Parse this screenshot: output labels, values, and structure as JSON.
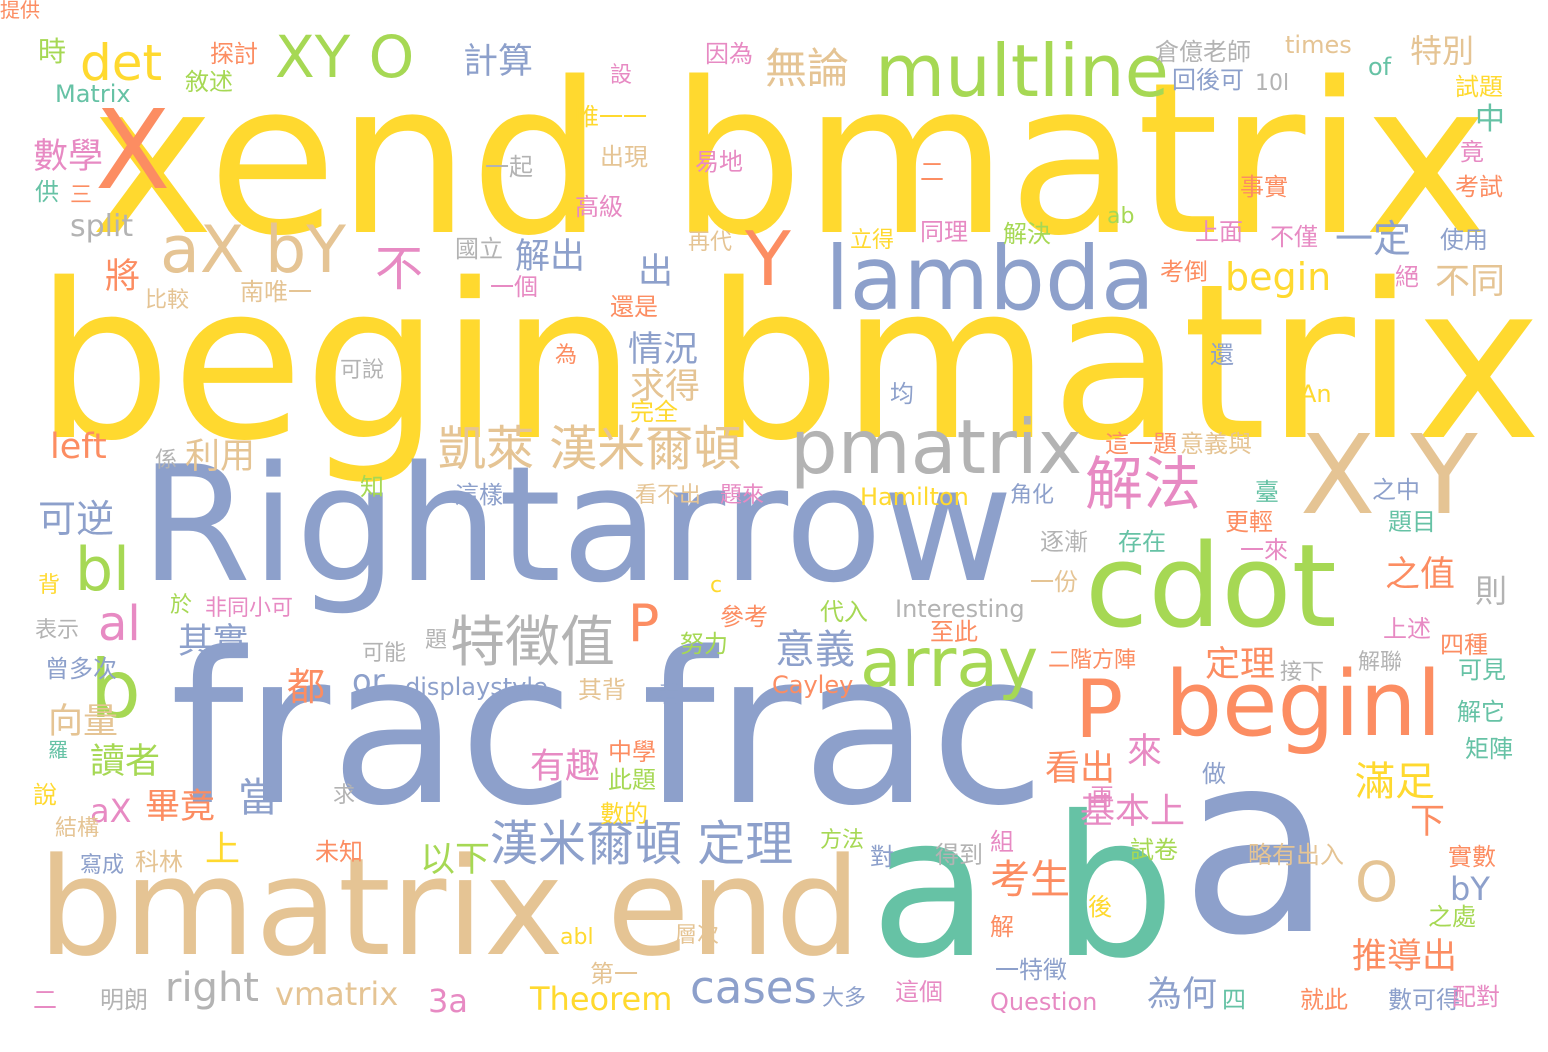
{
  "colors": {
    "background": "#ffffff",
    "yellow": "#FFD92F",
    "blue": "#8DA0CB",
    "tan": "#E5C494",
    "green": "#A6D854",
    "orange": "#FC8D62",
    "teal": "#66C2A5",
    "pink": "#E78AC3",
    "gray": "#B3B3B3"
  },
  "words": [
    {
      "text": "xend bmatrix",
      "color": "yellow"
    },
    {
      "text": "begin bmatrix",
      "color": "yellow"
    },
    {
      "text": "Rightarrow",
      "color": "blue"
    },
    {
      "text": "frac frac",
      "color": "blue"
    },
    {
      "text": "bmatrix end",
      "color": "tan"
    },
    {
      "text": "a b",
      "color": "teal"
    },
    {
      "text": "a",
      "color": "blue"
    },
    {
      "text": "X",
      "color": "orange"
    },
    {
      "text": "XY O",
      "color": "green"
    },
    {
      "text": "multline",
      "color": "green"
    },
    {
      "text": "lambda",
      "color": "blue"
    },
    {
      "text": "aX bY",
      "color": "tan"
    },
    {
      "text": "Y",
      "color": "orange"
    },
    {
      "text": "pmatrix",
      "color": "gray"
    },
    {
      "text": "X Y",
      "color": "tan"
    },
    {
      "text": "cdot",
      "color": "green"
    },
    {
      "text": "beginl",
      "color": "orange"
    },
    {
      "text": "P",
      "color": "orange"
    },
    {
      "text": "array",
      "color": "green"
    },
    {
      "text": "b",
      "color": "green"
    },
    {
      "text": "bl",
      "color": "green"
    },
    {
      "text": "al",
      "color": "pink"
    },
    {
      "text": "det",
      "color": "yellow"
    },
    {
      "text": "解法",
      "color": "pink"
    },
    {
      "text": "特徵值",
      "color": "gray"
    },
    {
      "text": "P",
      "color": "orange"
    },
    {
      "text": "凱萊 漢米爾頓",
      "color": "tan"
    },
    {
      "text": "漢米爾頓 定理",
      "color": "blue"
    },
    {
      "text": "無論",
      "color": "tan"
    },
    {
      "text": "begin",
      "color": "yellow"
    },
    {
      "text": "不",
      "color": "pink"
    },
    {
      "text": "一定",
      "color": "blue"
    },
    {
      "text": "O",
      "color": "tan"
    },
    {
      "text": "cases",
      "color": "blue"
    },
    {
      "text": "意義",
      "color": "blue"
    },
    {
      "text": "可逆",
      "color": "blue"
    },
    {
      "text": "split",
      "color": "gray"
    },
    {
      "text": "right",
      "color": "gray"
    },
    {
      "text": "vmatrix",
      "color": "tan"
    },
    {
      "text": "Theorem",
      "color": "yellow"
    },
    {
      "text": "3a",
      "color": "pink"
    },
    {
      "text": "left",
      "color": "orange"
    },
    {
      "text": "or",
      "color": "blue"
    },
    {
      "text": "displaystyle",
      "color": "blue"
    },
    {
      "text": "Hamilton",
      "color": "yellow"
    },
    {
      "text": "Interesting",
      "color": "gray"
    },
    {
      "text": "Cayley",
      "color": "orange"
    },
    {
      "text": "Question",
      "color": "pink"
    },
    {
      "text": "times",
      "color": "tan"
    },
    {
      "text": "Matrix",
      "color": "teal"
    },
    {
      "text": "of",
      "color": "teal"
    },
    {
      "text": "An",
      "color": "yellow"
    },
    {
      "text": "ab",
      "color": "green"
    },
    {
      "text": "abl",
      "color": "yellow"
    },
    {
      "text": "bY",
      "color": "blue"
    },
    {
      "text": "aX",
      "color": "pink"
    },
    {
      "text": "10l",
      "color": "gray"
    },
    {
      "text": "c",
      "color": "yellow"
    },
    {
      "text": "時",
      "color": "green"
    },
    {
      "text": "探討",
      "color": "orange"
    },
    {
      "text": "敘述",
      "color": "green"
    },
    {
      "text": "計算",
      "color": "blue"
    },
    {
      "text": "因為",
      "color": "pink"
    },
    {
      "text": "倉億老師",
      "color": "gray"
    },
    {
      "text": "特別",
      "color": "tan"
    },
    {
      "text": "回後可",
      "color": "blue"
    },
    {
      "text": "試題",
      "color": "yellow"
    },
    {
      "text": "數學",
      "color": "pink"
    },
    {
      "text": "供",
      "color": "teal"
    },
    {
      "text": "三",
      "color": "orange"
    },
    {
      "text": "設",
      "color": "pink"
    },
    {
      "text": "唯一一",
      "color": "yellow"
    },
    {
      "text": "出現",
      "color": "tan"
    },
    {
      "text": "一起",
      "color": "gray"
    },
    {
      "text": "易地",
      "color": "pink"
    },
    {
      "text": "高級",
      "color": "pink"
    },
    {
      "text": "二",
      "color": "orange"
    },
    {
      "text": "中",
      "color": "teal"
    },
    {
      "text": "竟",
      "color": "pink"
    },
    {
      "text": "考試",
      "color": "orange"
    },
    {
      "text": "事實",
      "color": "orange"
    },
    {
      "text": "立得",
      "color": "yellow"
    },
    {
      "text": "同理",
      "color": "pink"
    },
    {
      "text": "解決",
      "color": "green"
    },
    {
      "text": "上面",
      "color": "pink"
    },
    {
      "text": "不僅",
      "color": "pink"
    },
    {
      "text": "使用",
      "color": "blue"
    },
    {
      "text": "國立",
      "color": "gray"
    },
    {
      "text": "解出",
      "color": "blue"
    },
    {
      "text": "再代",
      "color": "tan"
    },
    {
      "text": "出",
      "color": "blue"
    },
    {
      "text": "將",
      "color": "orange"
    },
    {
      "text": "比較",
      "color": "tan"
    },
    {
      "text": "南唯一",
      "color": "tan"
    },
    {
      "text": "一個",
      "color": "pink"
    },
    {
      "text": "還是",
      "color": "orange"
    },
    {
      "text": "考倒",
      "color": "orange"
    },
    {
      "text": "絕",
      "color": "pink"
    },
    {
      "text": "不同",
      "color": "tan"
    },
    {
      "text": "為",
      "color": "orange"
    },
    {
      "text": "情況",
      "color": "blue"
    },
    {
      "text": "求得",
      "color": "tan"
    },
    {
      "text": "完全",
      "color": "yellow"
    },
    {
      "text": "可說",
      "color": "gray"
    },
    {
      "text": "還",
      "color": "blue"
    },
    {
      "text": "均",
      "color": "blue"
    },
    {
      "text": "利用",
      "color": "tan"
    },
    {
      "text": "係",
      "color": "gray"
    },
    {
      "text": "這一題",
      "color": "orange"
    },
    {
      "text": "意義與",
      "color": "tan"
    },
    {
      "text": "知",
      "color": "green"
    },
    {
      "text": "這樣",
      "color": "blue"
    },
    {
      "text": "看不出",
      "color": "tan"
    },
    {
      "text": "題來",
      "color": "pink"
    },
    {
      "text": "角化",
      "color": "blue"
    },
    {
      "text": "臺",
      "color": "teal"
    },
    {
      "text": "之中",
      "color": "blue"
    },
    {
      "text": "更輕",
      "color": "orange"
    },
    {
      "text": "題目",
      "color": "teal"
    },
    {
      "text": "逐漸",
      "color": "gray"
    },
    {
      "text": "存在",
      "color": "teal"
    },
    {
      "text": "一來",
      "color": "pink"
    },
    {
      "text": "之值",
      "color": "orange"
    },
    {
      "text": "則",
      "color": "gray"
    },
    {
      "text": "背",
      "color": "yellow"
    },
    {
      "text": "於",
      "color": "green"
    },
    {
      "text": "非同小可",
      "color": "pink"
    },
    {
      "text": "一份",
      "color": "tan"
    },
    {
      "text": "參考",
      "color": "orange"
    },
    {
      "text": "代入",
      "color": "green"
    },
    {
      "text": "表示",
      "color": "gray"
    },
    {
      "text": "其實",
      "color": "blue"
    },
    {
      "text": "至此",
      "color": "orange"
    },
    {
      "text": "上述",
      "color": "pink"
    },
    {
      "text": "四種",
      "color": "orange"
    },
    {
      "text": "可能",
      "color": "gray"
    },
    {
      "text": "題",
      "color": "gray"
    },
    {
      "text": "努力",
      "color": "green"
    },
    {
      "text": "二階方陣",
      "color": "orange"
    },
    {
      "text": "定理",
      "color": "orange"
    },
    {
      "text": "接下",
      "color": "gray"
    },
    {
      "text": "解聯",
      "color": "gray"
    },
    {
      "text": "可見",
      "color": "teal"
    },
    {
      "text": "曾多次",
      "color": "blue"
    },
    {
      "text": "都",
      "color": "orange"
    },
    {
      "text": "其背",
      "color": "tan"
    },
    {
      "text": "看",
      "color": "blue"
    },
    {
      "text": "解它",
      "color": "teal"
    },
    {
      "text": "向量",
      "color": "tan"
    },
    {
      "text": "讀者",
      "color": "green"
    },
    {
      "text": "羅",
      "color": "teal"
    },
    {
      "text": "來",
      "color": "pink"
    },
    {
      "text": "中學",
      "color": "orange"
    },
    {
      "text": "此題",
      "color": "green"
    },
    {
      "text": "做",
      "color": "blue"
    },
    {
      "text": "矩陣",
      "color": "teal"
    },
    {
      "text": "滿足",
      "color": "yellow"
    },
    {
      "text": "有趣",
      "color": "pink"
    },
    {
      "text": "看出",
      "color": "orange"
    },
    {
      "text": "說",
      "color": "yellow"
    },
    {
      "text": "畢竟",
      "color": "orange"
    },
    {
      "text": "當",
      "color": "blue"
    },
    {
      "text": "求",
      "color": "gray"
    },
    {
      "text": "再",
      "color": "pink"
    },
    {
      "text": "數的",
      "color": "yellow"
    },
    {
      "text": "基本上",
      "color": "pink"
    },
    {
      "text": "下",
      "color": "orange"
    },
    {
      "text": "結構",
      "color": "tan"
    },
    {
      "text": "上",
      "color": "yellow"
    },
    {
      "text": "方法",
      "color": "green"
    },
    {
      "text": "組",
      "color": "pink"
    },
    {
      "text": "寫成",
      "color": "blue"
    },
    {
      "text": "科林",
      "color": "tan"
    },
    {
      "text": "未知",
      "color": "orange"
    },
    {
      "text": "以下",
      "color": "green"
    },
    {
      "text": "對",
      "color": "blue"
    },
    {
      "text": "得到",
      "color": "gray"
    },
    {
      "text": "試卷",
      "color": "green"
    },
    {
      "text": "略有出入",
      "color": "tan"
    },
    {
      "text": "實數",
      "color": "orange"
    },
    {
      "text": "考生",
      "color": "orange"
    },
    {
      "text": "後",
      "color": "yellow"
    },
    {
      "text": "解",
      "color": "orange"
    },
    {
      "text": "之處",
      "color": "green"
    },
    {
      "text": "推導出",
      "color": "orange"
    },
    {
      "text": "一特徵",
      "color": "blue"
    },
    {
      "text": "第一",
      "color": "tan"
    },
    {
      "text": "層次",
      "color": "tan"
    },
    {
      "text": "二",
      "color": "pink"
    },
    {
      "text": "明朗",
      "color": "gray"
    },
    {
      "text": "大多",
      "color": "blue"
    },
    {
      "text": "這個",
      "color": "pink"
    },
    {
      "text": "為何",
      "color": "blue"
    },
    {
      "text": "四",
      "color": "teal"
    },
    {
      "text": "就此",
      "color": "orange"
    },
    {
      "text": "數可得",
      "color": "blue"
    },
    {
      "text": "配對",
      "color": "pink"
    },
    {
      "text": "提供",
      "color": "orange"
    }
  ]
}
